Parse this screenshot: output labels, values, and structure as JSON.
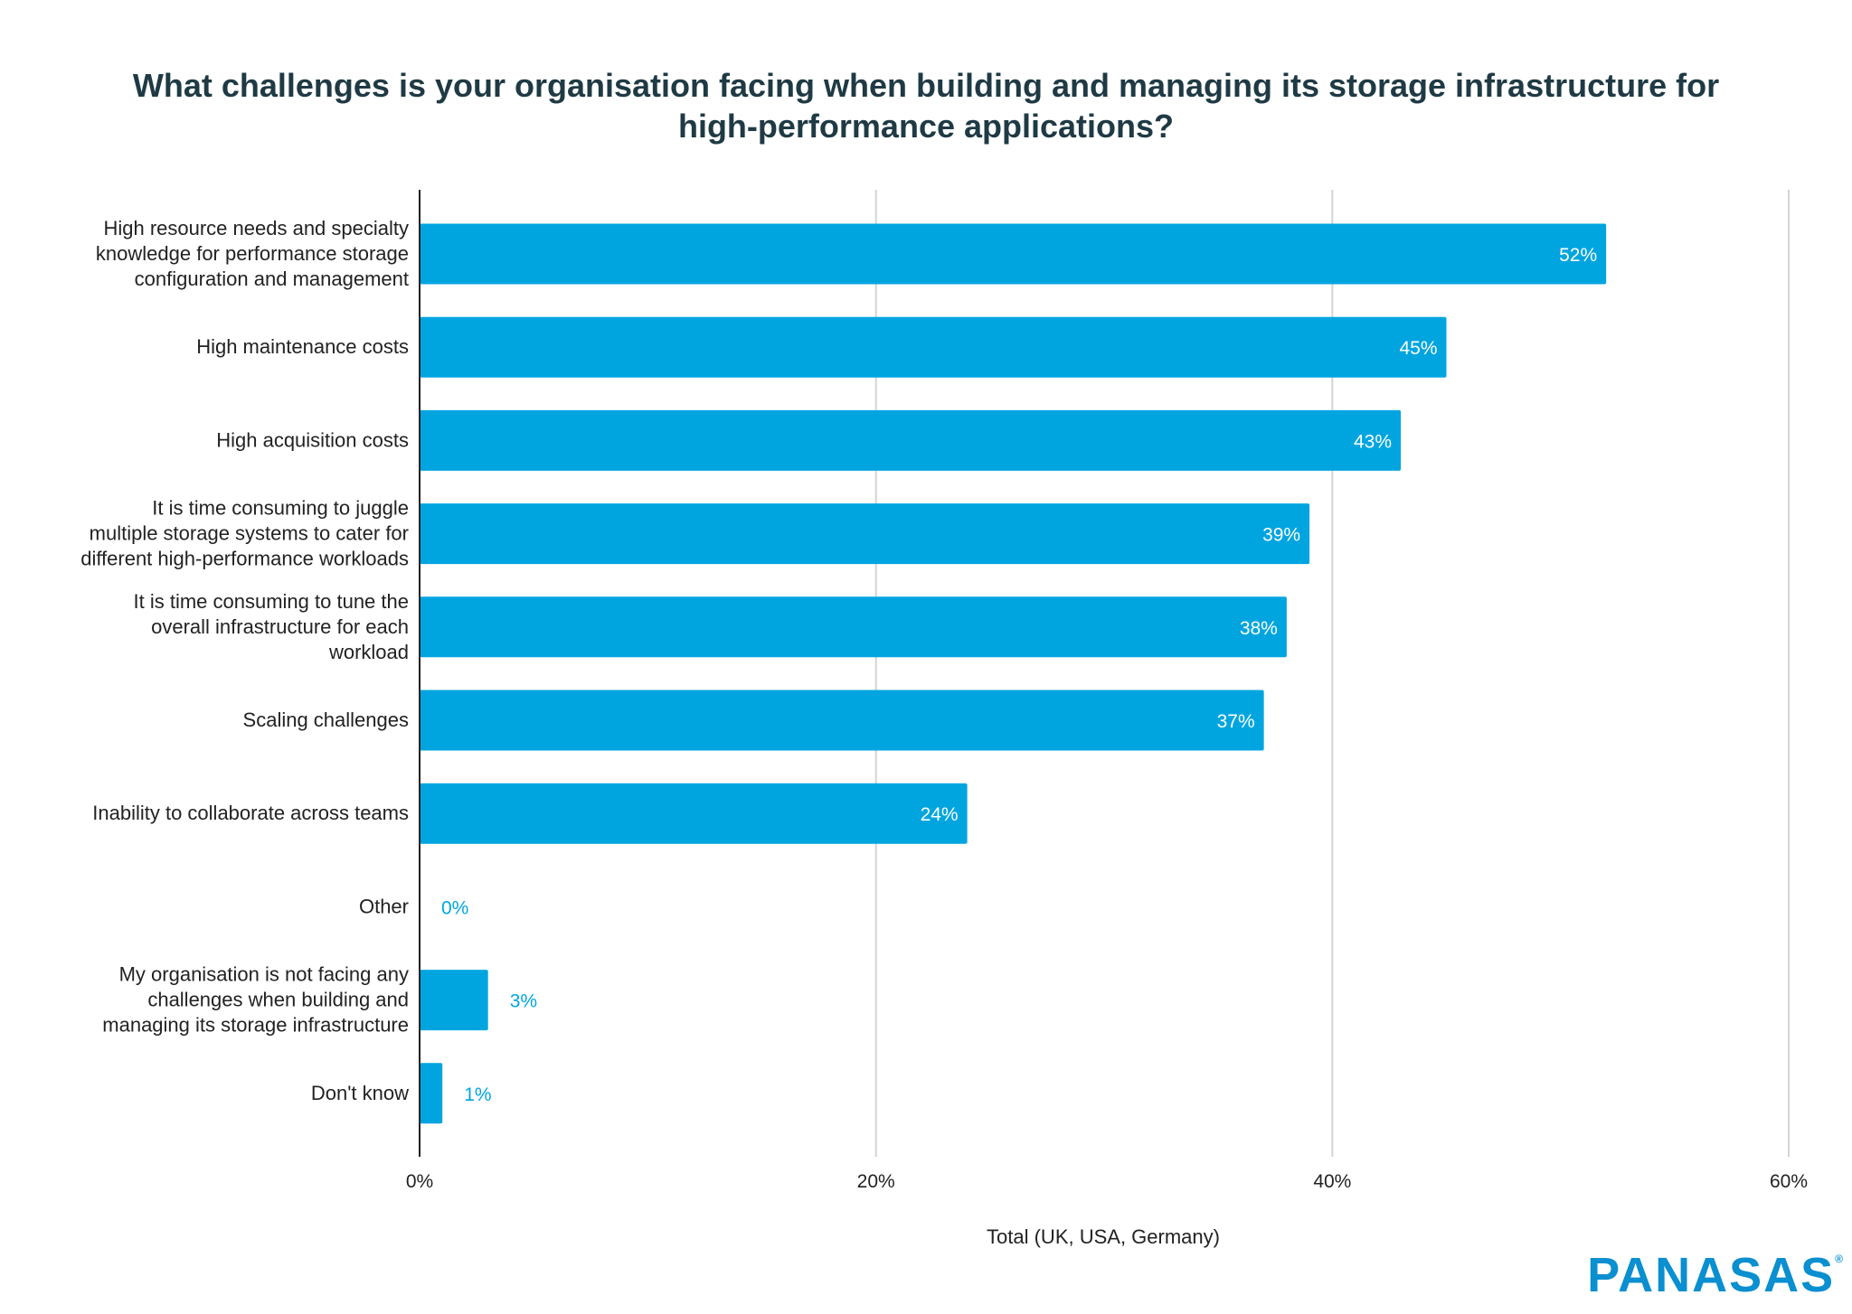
{
  "chart_data": {
    "type": "bar",
    "orientation": "horizontal",
    "title": "What challenges is your organisation facing when building and managing its storage infrastructure for high-performance applications?",
    "xlabel": "Total (UK, USA, Germany)",
    "ylabel": "",
    "xlim": [
      0,
      60
    ],
    "x_ticks": [
      "0%",
      "20%",
      "40%",
      "60%"
    ],
    "x_tick_values": [
      0,
      20,
      40,
      60
    ],
    "grid": "vertical",
    "legend": "none",
    "bar_color": "#00a5e0",
    "categories": [
      "High resource needs and specialty knowledge for performance storage configuration and management",
      "High maintenance costs",
      "High acquisition costs",
      "It is time consuming to juggle multiple storage systems to cater for different high-performance workloads",
      "It is time consuming to tune the overall infrastructure for each workload",
      "Scaling challenges",
      "Inability to collaborate across teams",
      "Other",
      "My organisation is not facing any challenges when building and managing its storage infrastructure",
      "Don't know"
    ],
    "category_lines": [
      [
        "High resource needs and specialty",
        "knowledge for performance storage",
        "configuration and management"
      ],
      [
        "High maintenance costs"
      ],
      [
        "High acquisition costs"
      ],
      [
        "It is time consuming to juggle",
        "multiple storage systems to cater for",
        "different high-performance workloads"
      ],
      [
        "It is time consuming to tune the",
        "overall infrastructure for each",
        "workload"
      ],
      [
        "Scaling challenges"
      ],
      [
        "Inability to collaborate across teams"
      ],
      [
        "Other"
      ],
      [
        "My organisation is not facing any",
        "challenges when building and",
        "managing its storage infrastructure"
      ],
      [
        "Don't know"
      ]
    ],
    "values": [
      52,
      45,
      43,
      39,
      38,
      37,
      24,
      0,
      3,
      1
    ],
    "data_labels": [
      "52%",
      "45%",
      "43%",
      "39%",
      "38%",
      "37%",
      "24%",
      "0%",
      "3%",
      "1%"
    ]
  },
  "logo": {
    "text": "PANASAS",
    "mark": "®"
  }
}
